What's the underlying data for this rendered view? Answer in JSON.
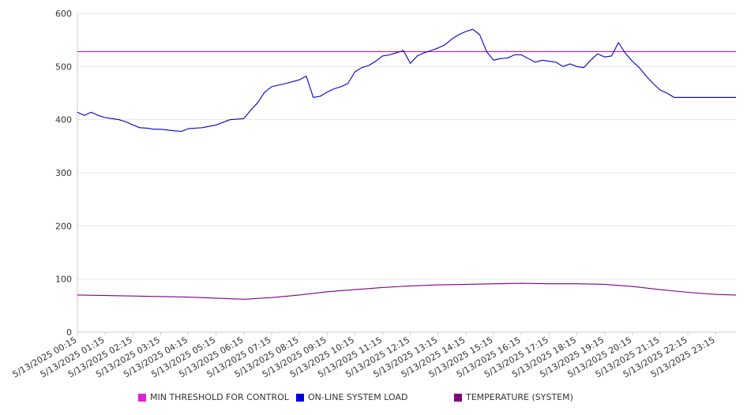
{
  "chart_data": {
    "type": "line",
    "title": "",
    "xlabel": "",
    "ylabel": "",
    "ylim": [
      0,
      600
    ],
    "yticks": [
      0,
      100,
      200,
      300,
      400,
      500,
      600
    ],
    "grid": true,
    "legend_position": "bottom",
    "x_start": "5/13/2025 00:15",
    "x_end": "5/13/2025 23:59",
    "tick_labels": [
      "5/13/2025 00:15",
      "5/13/2025 01:15",
      "5/13/2025 02:15",
      "5/13/2025 03:15",
      "5/13/2025 04:15",
      "5/13/2025 05:15",
      "5/13/2025 06:15",
      "5/13/2025 07:15",
      "5/13/2025 08:15",
      "5/13/2025 09:15",
      "5/13/2025 10:15",
      "5/13/2025 11:15",
      "5/13/2025 12:15",
      "5/13/2025 13:15",
      "5/13/2025 14:15",
      "5/13/2025 15:15",
      "5/13/2025 16:15",
      "5/13/2025 17:15",
      "5/13/2025 18:15",
      "5/13/2025 19:15",
      "5/13/2025 20:15",
      "5/13/2025 21:15",
      "5/13/2025 22:15",
      "5/13/2025 23:15"
    ],
    "series": [
      {
        "name": "MIN THRESHOLD FOR CONTROL",
        "color": "#cc00cc",
        "x": [
          "5/13/2025 00:15",
          "5/13/2025 23:59"
        ],
        "values": [
          528,
          528
        ]
      },
      {
        "name": "ON-LINE SYSTEM LOAD",
        "color": "#0000cc",
        "x": [
          "5/13/2025 00:15",
          "5/13/2025 00:30",
          "5/13/2025 00:45",
          "5/13/2025 01:00",
          "5/13/2025 01:15",
          "5/13/2025 01:30",
          "5/13/2025 01:45",
          "5/13/2025 02:00",
          "5/13/2025 02:15",
          "5/13/2025 02:30",
          "5/13/2025 02:45",
          "5/13/2025 03:00",
          "5/13/2025 03:15",
          "5/13/2025 03:45",
          "5/13/2025 04:00",
          "5/13/2025 04:15",
          "5/13/2025 04:45",
          "5/13/2025 05:15",
          "5/13/2025 05:45",
          "5/13/2025 06:15",
          "5/13/2025 06:30",
          "5/13/2025 06:45",
          "5/13/2025 07:00",
          "5/13/2025 07:15",
          "5/13/2025 07:45",
          "5/13/2025 08:15",
          "5/13/2025 08:30",
          "5/13/2025 08:45",
          "5/13/2025 09:00",
          "5/13/2025 09:15",
          "5/13/2025 09:30",
          "5/13/2025 09:45",
          "5/13/2025 10:00",
          "5/13/2025 10:15",
          "5/13/2025 10:30",
          "5/13/2025 10:45",
          "5/13/2025 11:00",
          "5/13/2025 11:15",
          "5/13/2025 11:30",
          "5/13/2025 11:45",
          "5/13/2025 12:00",
          "5/13/2025 12:15",
          "5/13/2025 12:30",
          "5/13/2025 12:45",
          "5/13/2025 13:00",
          "5/13/2025 13:15",
          "5/13/2025 13:30",
          "5/13/2025 13:45",
          "5/13/2025 14:00",
          "5/13/2025 14:15",
          "5/13/2025 14:30",
          "5/13/2025 14:45",
          "5/13/2025 15:00",
          "5/13/2025 15:15",
          "5/13/2025 15:30",
          "5/13/2025 15:45",
          "5/13/2025 16:00",
          "5/13/2025 16:15",
          "5/13/2025 16:30",
          "5/13/2025 16:45",
          "5/13/2025 17:00",
          "5/13/2025 17:15",
          "5/13/2025 17:30",
          "5/13/2025 17:45",
          "5/13/2025 18:00",
          "5/13/2025 18:15",
          "5/13/2025 18:30",
          "5/13/2025 18:45",
          "5/13/2025 19:00",
          "5/13/2025 19:15",
          "5/13/2025 19:30",
          "5/13/2025 19:45",
          "5/13/2025 20:00",
          "5/13/2025 20:15",
          "5/13/2025 20:30",
          "5/13/2025 20:45",
          "5/13/2025 21:00",
          "5/13/2025 21:15",
          "5/13/2025 21:30",
          "5/13/2025 21:45",
          "5/13/2025 22:00",
          "5/13/2025 22:15",
          "5/13/2025 22:30",
          "5/13/2025 22:45",
          "5/13/2025 23:00",
          "5/13/2025 23:15",
          "5/13/2025 23:30",
          "5/13/2025 23:45",
          "5/13/2025 23:59"
        ],
        "values": [
          414,
          408,
          414,
          408,
          404,
          402,
          400,
          396,
          390,
          385,
          384,
          382,
          382,
          379,
          378,
          383,
          385,
          390,
          400,
          402,
          418,
          432,
          452,
          462,
          468,
          475,
          482,
          442,
          444,
          452,
          458,
          462,
          468,
          490,
          498,
          502,
          510,
          520,
          522,
          526,
          530,
          506,
          520,
          526,
          530,
          535,
          541,
          552,
          560,
          566,
          570,
          560,
          528,
          512,
          515,
          516,
          522,
          522,
          515,
          508,
          512,
          510,
          508,
          500,
          505,
          500,
          498,
          512,
          524,
          518,
          520,
          545,
          525,
          510,
          498,
          482,
          468,
          456,
          450,
          442,
          442,
          442,
          442,
          442,
          442,
          442,
          442,
          442,
          442
        ]
      },
      {
        "name": "TEMPERATURE (SYSTEM)",
        "color": "#800080",
        "x": [
          "5/13/2025 00:15",
          "5/13/2025 02:15",
          "5/13/2025 04:15",
          "5/13/2025 06:15",
          "5/13/2025 07:15",
          "5/13/2025 08:15",
          "5/13/2025 09:15",
          "5/13/2025 10:15",
          "5/13/2025 11:15",
          "5/13/2025 12:15",
          "5/13/2025 13:15",
          "5/13/2025 14:15",
          "5/13/2025 15:15",
          "5/13/2025 16:15",
          "5/13/2025 17:15",
          "5/13/2025 18:15",
          "5/13/2025 19:15",
          "5/13/2025 20:15",
          "5/13/2025 21:15",
          "5/13/2025 22:15",
          "5/13/2025 23:15",
          "5/13/2025 23:59"
        ],
        "values": [
          70,
          68,
          66,
          62,
          65,
          70,
          76,
          80,
          84,
          87,
          89,
          90,
          91,
          92,
          91,
          91,
          90,
          86,
          80,
          75,
          71,
          70
        ]
      }
    ]
  }
}
